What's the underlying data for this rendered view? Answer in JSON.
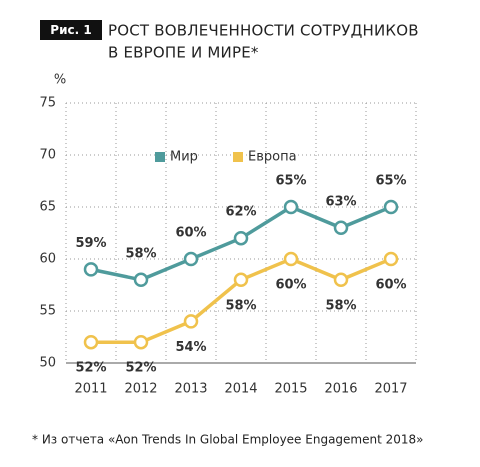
{
  "chart_data": {
    "type": "line",
    "figure_label": "Рис. 1",
    "title": [
      "РОСТ ВОВЛЕЧЕННОСТИ СОТРУДНИКОВ",
      "В ЕВРОПЕ И МИРЕ*"
    ],
    "y_unit": "%",
    "categories": [
      "2011",
      "2012",
      "2013",
      "2014",
      "2015",
      "2016",
      "2017"
    ],
    "series": [
      {
        "name": "Мир",
        "color": "#4f9b9c",
        "values": [
          59,
          58,
          60,
          62,
          65,
          63,
          65
        ],
        "value_labels": [
          "59%",
          "58%",
          "60%",
          "62%",
          "65%",
          "63%",
          "65%"
        ]
      },
      {
        "name": "Европа",
        "color": "#f0c24c",
        "values": [
          52,
          52,
          54,
          58,
          60,
          58,
          60
        ],
        "value_labels": [
          "52%",
          "52%",
          "54%",
          "58%",
          "60%",
          "58%",
          "60%"
        ]
      }
    ],
    "ylim": [
      50,
      75
    ],
    "yticks": [
      50,
      55,
      60,
      65,
      70,
      75
    ],
    "grid": true,
    "footnote": "*  Из отчета «Aon Trends In Global Employee Engagement 2018»"
  }
}
